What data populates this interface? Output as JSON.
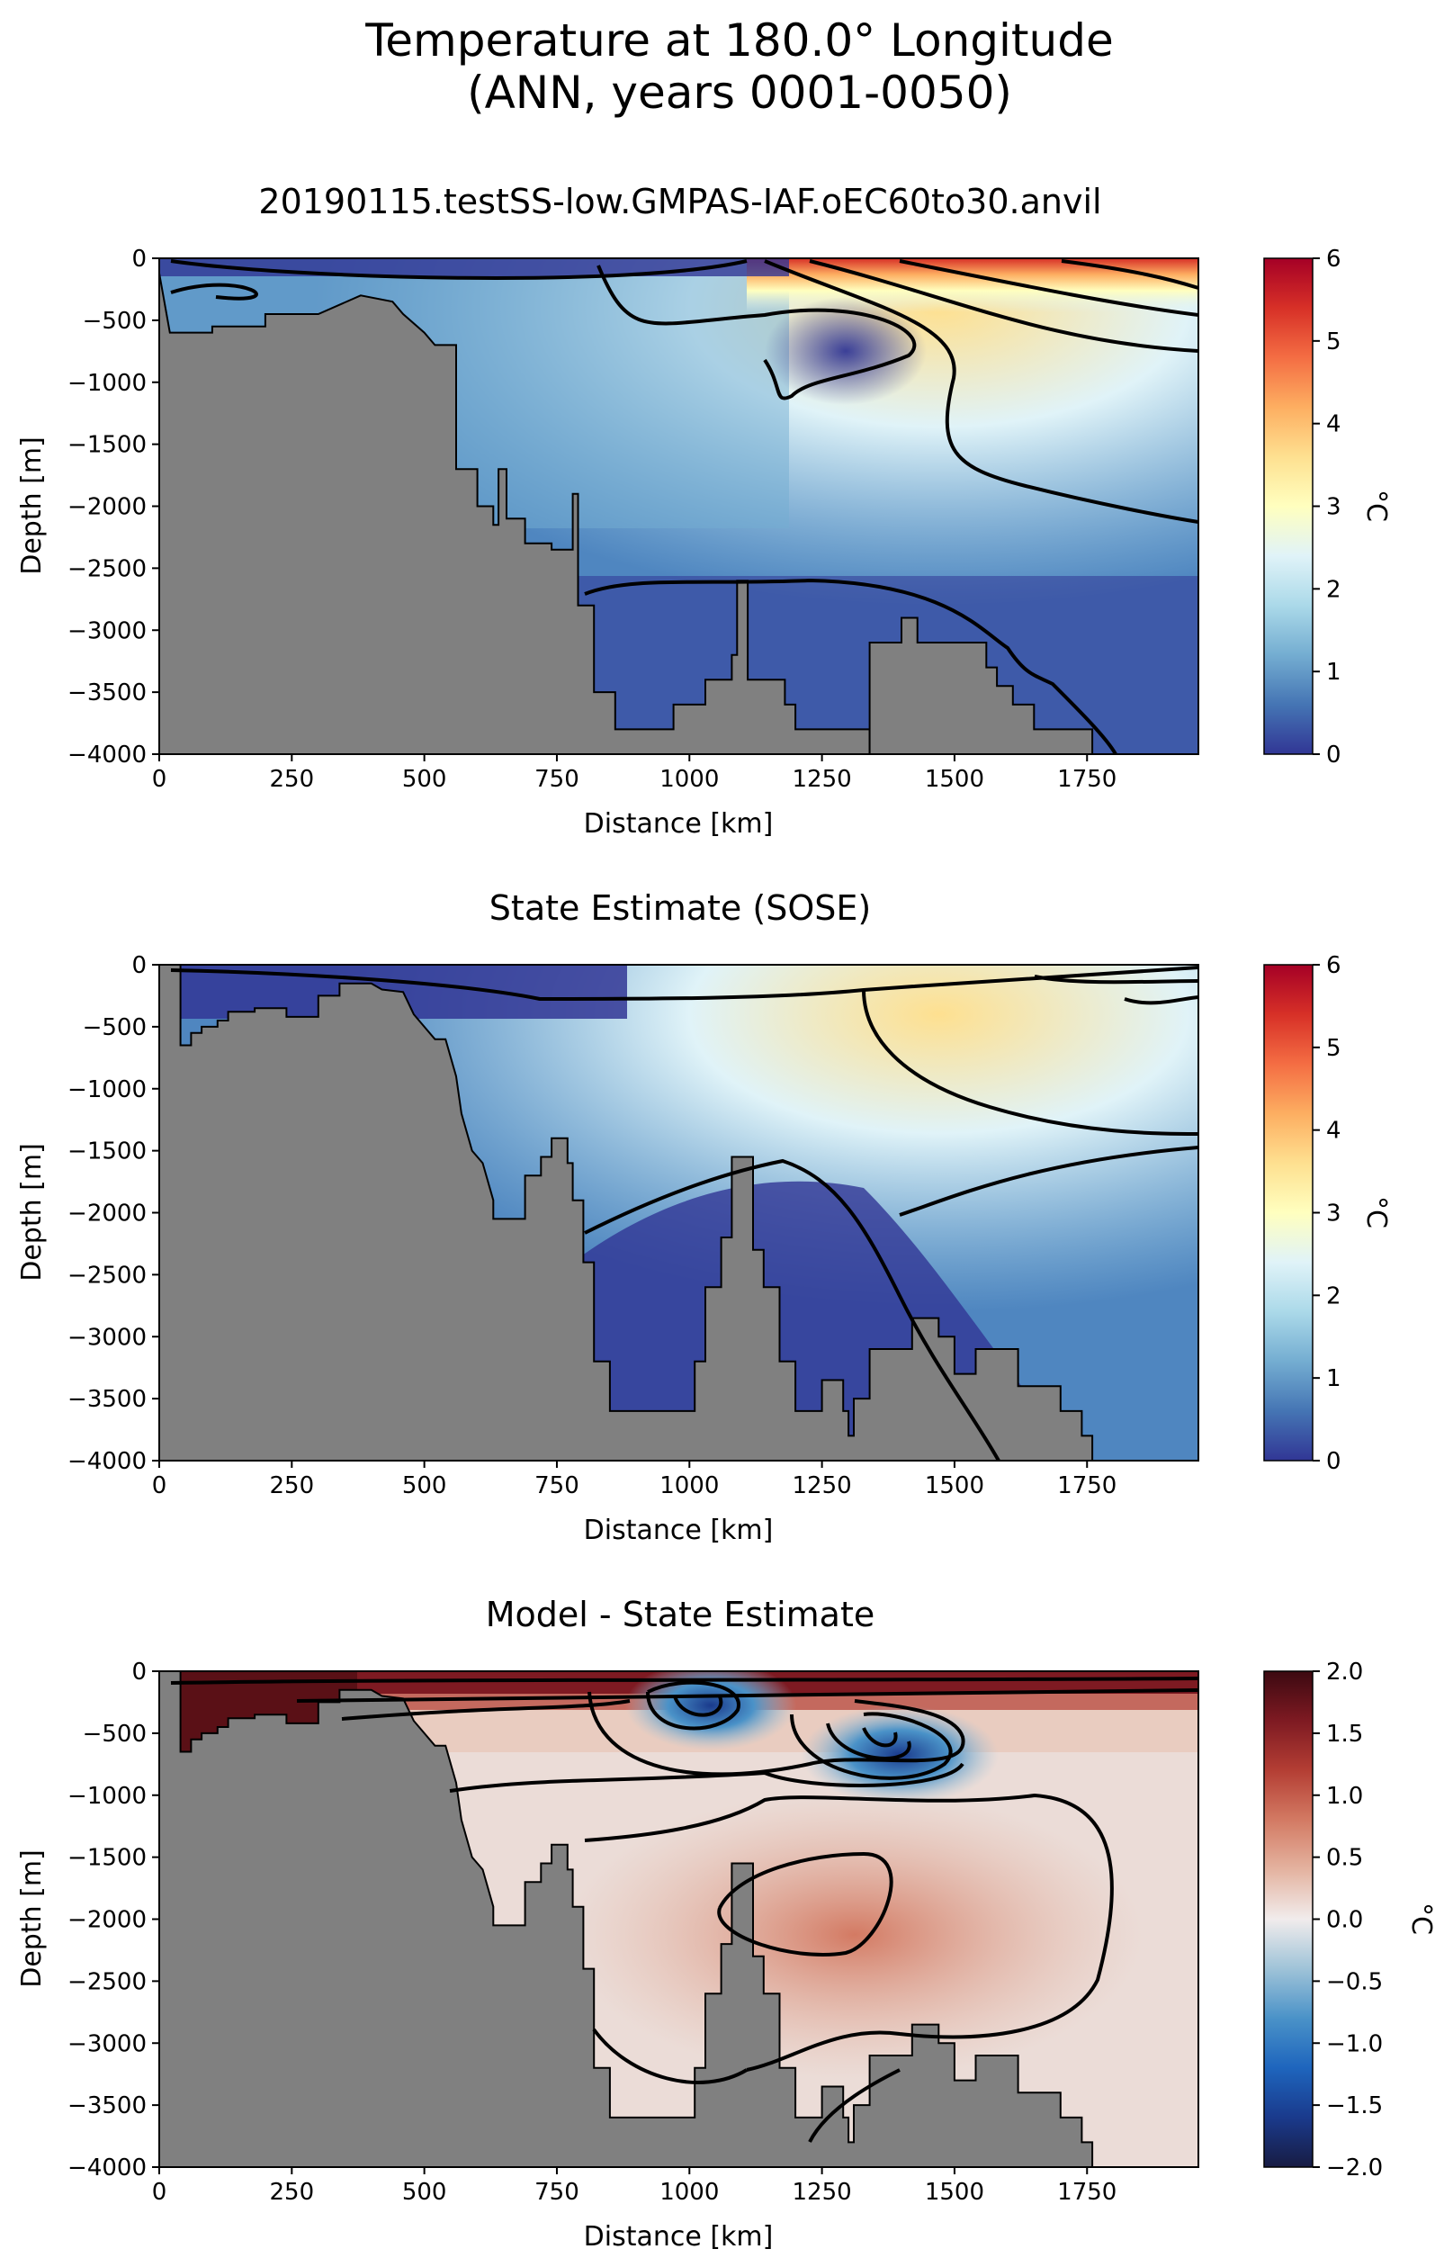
{
  "suptitle": [
    "Temperature at 180.0° Longitude",
    "(ANN, years 0001-0050)"
  ],
  "colors": {
    "bathymetry": "#808080",
    "contour": "#000000",
    "RdYlBu_r": [
      "#313695",
      "#4575b4",
      "#74add1",
      "#abd9e9",
      "#e0f3f8",
      "#ffffbf",
      "#fee090",
      "#fdae61",
      "#f46d43",
      "#d73027",
      "#a50026"
    ],
    "balance": [
      "#181c43",
      "#1a3a8c",
      "#1e65bd",
      "#4a92c8",
      "#9fc3d8",
      "#f1ecec",
      "#e4b3a0",
      "#d37a63",
      "#b43e34",
      "#7e1a22",
      "#3c0911"
    ]
  },
  "chart_data": [
    {
      "type": "heatmap",
      "title": "20190115.testSS-low.GMPAS-IAF.oEC60to30.anvil",
      "xlabel": "Distance [km]",
      "ylabel": "Depth [m]",
      "xlim": [
        0,
        1960
      ],
      "ylim": [
        -4000,
        0
      ],
      "xticks": [
        "0",
        "250",
        "500",
        "750",
        "1000",
        "1250",
        "1500",
        "1750"
      ],
      "yticks": [
        "0",
        "−500",
        "−1000",
        "−1500",
        "−2000",
        "−2500",
        "−3000",
        "−3500",
        "−4000"
      ],
      "colorbar": {
        "label": "°C",
        "min": 0,
        "max": 6,
        "ticks": [
          "0",
          "1",
          "2",
          "3",
          "4",
          "5",
          "6"
        ],
        "colormap": "RdYlBu_r"
      },
      "contour_levels": [
        0.5,
        1,
        2,
        3,
        4
      ],
      "bathymetry_km_m": [
        [
          0,
          -120
        ],
        [
          20,
          -600
        ],
        [
          100,
          -600
        ],
        [
          100,
          -550
        ],
        [
          200,
          -550
        ],
        [
          200,
          -450
        ],
        [
          300,
          -450
        ],
        [
          380,
          -300
        ],
        [
          440,
          -350
        ],
        [
          460,
          -450
        ],
        [
          500,
          -600
        ],
        [
          520,
          -700
        ],
        [
          560,
          -700
        ],
        [
          560,
          -1700
        ],
        [
          600,
          -1700
        ],
        [
          600,
          -2000
        ],
        [
          630,
          -2000
        ],
        [
          630,
          -2150
        ],
        [
          640,
          -2150
        ],
        [
          640,
          -1700
        ],
        [
          655,
          -1700
        ],
        [
          655,
          -2100
        ],
        [
          690,
          -2100
        ],
        [
          690,
          -2300
        ],
        [
          740,
          -2300
        ],
        [
          740,
          -2350
        ],
        [
          760,
          -2350
        ],
        [
          780,
          -2350
        ],
        [
          780,
          -1900
        ],
        [
          790,
          -1900
        ],
        [
          790,
          -2800
        ],
        [
          820,
          -2800
        ],
        [
          820,
          -3500
        ],
        [
          860,
          -3500
        ],
        [
          860,
          -3800
        ],
        [
          970,
          -3800
        ],
        [
          970,
          -3600
        ],
        [
          1030,
          -3600
        ],
        [
          1030,
          -3400
        ],
        [
          1080,
          -3400
        ],
        [
          1080,
          -3200
        ],
        [
          1090,
          -3200
        ],
        [
          1090,
          -2600
        ],
        [
          1110,
          -2600
        ],
        [
          1110,
          -3400
        ],
        [
          1180,
          -3400
        ],
        [
          1180,
          -3600
        ],
        [
          1200,
          -3600
        ],
        [
          1200,
          -3800
        ],
        [
          1340,
          -3800
        ],
        [
          1340,
          -4000
        ]
      ],
      "bathymetry2_km_m": [
        [
          1340,
          -4000
        ],
        [
          1340,
          -3100
        ],
        [
          1400,
          -3100
        ],
        [
          1400,
          -2900
        ],
        [
          1430,
          -2900
        ],
        [
          1430,
          -3100
        ],
        [
          1560,
          -3100
        ],
        [
          1560,
          -3300
        ],
        [
          1580,
          -3300
        ],
        [
          1580,
          -3450
        ],
        [
          1610,
          -3450
        ],
        [
          1610,
          -3600
        ],
        [
          1650,
          -3600
        ],
        [
          1650,
          -3800
        ],
        [
          1760,
          -3800
        ],
        [
          1760,
          -4000
        ]
      ],
      "field_note": "cold pool 0-0.5 C near 1250 km, -800 m; warm surface >4 C east of 1600 km"
    },
    {
      "type": "heatmap",
      "title": "State Estimate (SOSE)",
      "xlabel": "Distance [km]",
      "ylabel": "Depth [m]",
      "xlim": [
        0,
        1960
      ],
      "ylim": [
        -4000,
        0
      ],
      "xticks": [
        "0",
        "250",
        "500",
        "750",
        "1000",
        "1250",
        "1500",
        "1750"
      ],
      "yticks": [
        "0",
        "−500",
        "−1000",
        "−1500",
        "−2000",
        "−2500",
        "−3000",
        "−3500",
        "−4000"
      ],
      "colorbar": {
        "label": "°C",
        "min": 0,
        "max": 6,
        "ticks": [
          "0",
          "1",
          "2",
          "3",
          "4",
          "5",
          "6"
        ],
        "colormap": "RdYlBu_r"
      },
      "contour_levels": [
        0.5,
        1,
        2,
        3
      ]
    },
    {
      "type": "heatmap",
      "title": "Model - State Estimate",
      "xlabel": "Distance [km]",
      "ylabel": "Depth [m]",
      "xlim": [
        0,
        1960
      ],
      "ylim": [
        -4000,
        0
      ],
      "xticks": [
        "0",
        "250",
        "500",
        "750",
        "1000",
        "1250",
        "1500",
        "1750"
      ],
      "yticks": [
        "0",
        "−500",
        "−1000",
        "−1500",
        "−2000",
        "−2500",
        "−3000",
        "−3500",
        "−4000"
      ],
      "colorbar": {
        "label": "°C",
        "min": -2,
        "max": 2,
        "ticks": [
          "−2.0",
          "−1.5",
          "−1.0",
          "−0.5",
          "0.0",
          "0.5",
          "1.0",
          "1.5",
          "2.0"
        ],
        "colormap": "balance"
      },
      "contour_levels": [
        -1.5,
        -1,
        -0.5,
        -0.25,
        0,
        0.25,
        0.5
      ]
    }
  ]
}
